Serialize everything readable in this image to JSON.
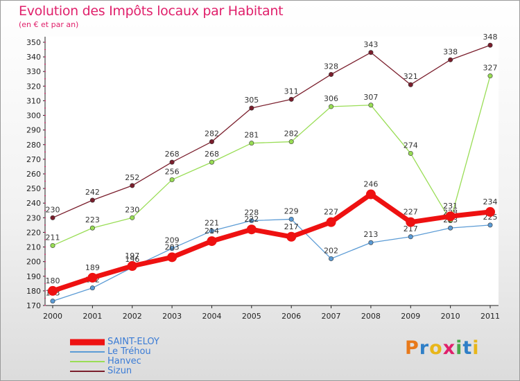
{
  "chart_data": {
    "type": "line",
    "title": "Evolution des Impôts locaux par Habitant",
    "subtitle": "(en € et par an)",
    "xlabel": "",
    "ylabel": "",
    "ylim": [
      170,
      350
    ],
    "ystep": 10,
    "grid": false,
    "legend_position": "bottom-left",
    "categories": [
      "2000",
      "2001",
      "2002",
      "2003",
      "2004",
      "2005",
      "2006",
      "2007",
      "2008",
      "2009",
      "2010",
      "2011"
    ],
    "series": [
      {
        "name": "Sizun",
        "color": "#7a1e2c",
        "values": [
          230,
          242,
          252,
          268,
          282,
          305,
          311,
          328,
          343,
          321,
          338,
          348
        ]
      },
      {
        "name": "Hanvec",
        "color": "#99dd55",
        "values": [
          211,
          223,
          230,
          256,
          268,
          281,
          282,
          306,
          307,
          274,
          228,
          327
        ]
      },
      {
        "name": "Le Tréhou",
        "color": "#5b9bd5",
        "values": [
          173,
          182,
          196,
          209,
          221,
          228,
          229,
          202,
          213,
          217,
          223,
          225
        ]
      },
      {
        "name": "SAINT-ELOY",
        "color": "#ee1111",
        "values": [
          180,
          189,
          197,
          203,
          214,
          222,
          217,
          227,
          246,
          227,
          231,
          234
        ]
      }
    ],
    "label_texts": {
      "Sizun": [
        "230",
        "242",
        "252",
        "268",
        "282",
        "305",
        "311",
        "328",
        "343",
        "321",
        "338",
        "348"
      ],
      "Hanvec": [
        "211",
        "223",
        "230",
        "256",
        "268",
        "281",
        "282",
        "306",
        "307",
        "274",
        "228",
        "327"
      ],
      "Le Tréhou": [
        "173",
        "182",
        "196",
        "209",
        "221",
        "228",
        "229",
        "202",
        "213",
        "217",
        "223",
        "225"
      ],
      "SAINT-ELOY": [
        "180",
        "189",
        "197",
        "203",
        "214",
        "222",
        "217",
        "227",
        "246",
        "227",
        "231",
        "234"
      ]
    }
  },
  "legend": {
    "items": [
      {
        "label": "SAINT-ELOY",
        "color": "#ee1111"
      },
      {
        "label": "Le Tréhou",
        "color": "#5b9bd5"
      },
      {
        "label": "Hanvec",
        "color": "#99dd55"
      },
      {
        "label": "Sizun",
        "color": "#7a1e2c"
      }
    ]
  },
  "logo": {
    "text": "Proxiti",
    "letter_colors": [
      "#e8791a",
      "#2f7fc7",
      "#e8b61a",
      "#e0206b",
      "#49a84a",
      "#2f7fc7",
      "#e8b61a"
    ]
  }
}
